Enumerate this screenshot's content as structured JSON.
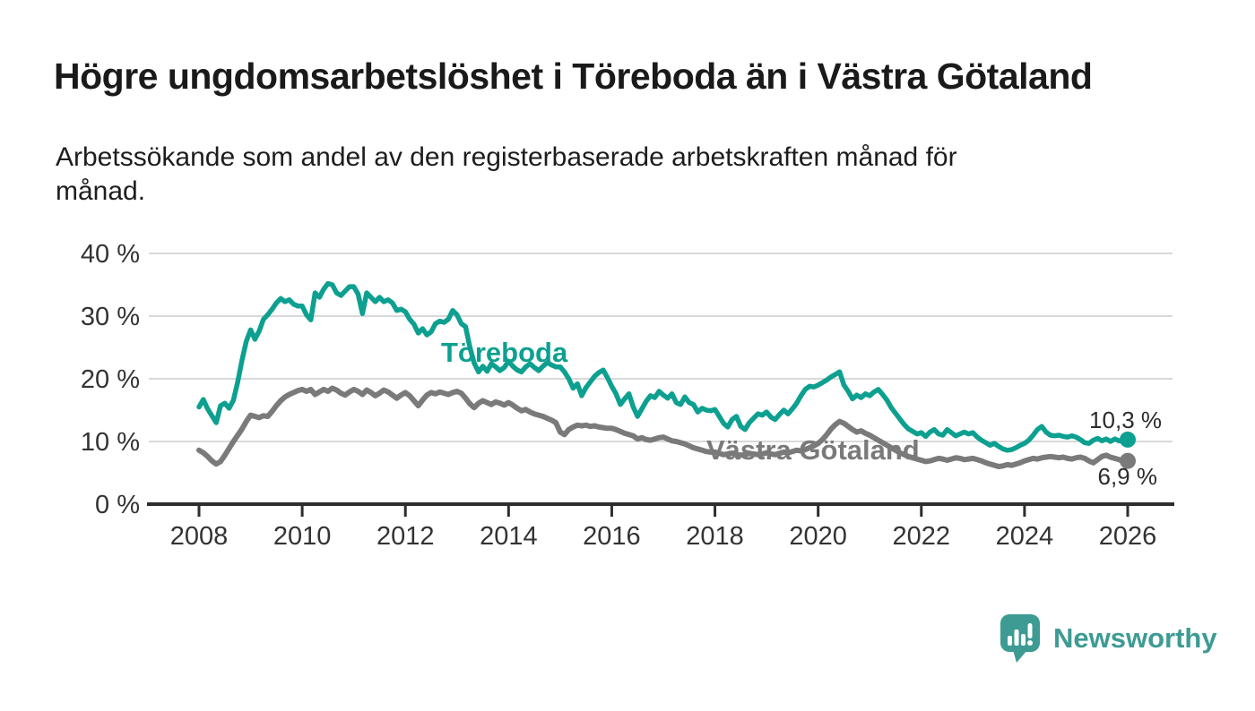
{
  "page": {
    "title": "Högre ungdomsarbetslöshet i Töreboda än i Västra Götaland",
    "subtitle": "Arbetssökande som andel av den registerbaserade arbetskraften månad för månad."
  },
  "branding": {
    "name": "Newsworthy",
    "color": "#3d9b93",
    "icon": "bar-chart-speech-bubble"
  },
  "chart_data": {
    "type": "line",
    "title": "Högre ungdomsarbetslöshet i Töreboda än i Västra Götaland",
    "subtitle": "Arbetssökande som andel av den registerbaserade arbetskraften månad för månad.",
    "x_start_year": 2008,
    "x_end_year": 2026,
    "points_per_year": 12,
    "ylim": [
      0,
      40
    ],
    "grid": "horizontal",
    "colors": {
      "grid": "#d9d9d9",
      "axis": "#2e2e2e",
      "axis_text": "#333333"
    },
    "y_axis": {
      "unit": "%",
      "ticks": [
        {
          "label": "0 %",
          "value": 0
        },
        {
          "label": "10 %",
          "value": 10
        },
        {
          "label": "20 %",
          "value": 20
        },
        {
          "label": "30 %",
          "value": 30
        },
        {
          "label": "40 %",
          "value": 40
        }
      ]
    },
    "x_axis": {
      "tick_years": [
        2008,
        2010,
        2012,
        2014,
        2016,
        2018,
        2020,
        2022,
        2024,
        2026
      ]
    },
    "series": [
      {
        "name": "Töreboda",
        "color": "#0da090",
        "end_label": "10,3 %",
        "end_value": 10.3,
        "values": [
          15.5,
          16.7,
          15.2,
          14.1,
          13.0,
          15.7,
          16.1,
          15.3,
          16.6,
          19.5,
          23.0,
          26.0,
          27.8,
          26.3,
          27.6,
          29.5,
          30.2,
          31.1,
          32.1,
          32.8,
          32.3,
          32.6,
          31.9,
          31.6,
          31.6,
          30.2,
          29.4,
          33.7,
          33.0,
          34.3,
          35.2,
          35.0,
          33.7,
          33.3,
          34.0,
          34.7,
          34.7,
          33.5,
          30.4,
          33.7,
          33.0,
          32.3,
          33.0,
          32.3,
          32.6,
          32.1,
          30.9,
          31.1,
          30.7,
          29.5,
          28.7,
          27.3,
          28.0,
          27.0,
          27.5,
          28.8,
          29.2,
          29.0,
          29.5,
          30.9,
          30.2,
          28.8,
          28.3,
          25.0,
          22.5,
          21.1,
          22.0,
          21.2,
          22.4,
          21.9,
          21.3,
          21.8,
          22.8,
          22.0,
          21.4,
          21.1,
          21.9,
          22.4,
          21.8,
          21.3,
          22.0,
          22.6,
          22.2,
          21.9,
          21.9,
          21.1,
          20.0,
          18.5,
          19.2,
          17.3,
          18.6,
          19.5,
          20.4,
          21.0,
          21.4,
          20.2,
          18.8,
          17.6,
          15.9,
          16.8,
          17.6,
          15.5,
          14.0,
          15.2,
          16.4,
          17.3,
          17.0,
          18.0,
          17.4,
          16.9,
          17.6,
          16.2,
          15.9,
          17.1,
          16.2,
          15.9,
          14.7,
          15.3,
          15.0,
          14.9,
          15.1,
          14.0,
          12.9,
          12.3,
          13.5,
          14.0,
          12.4,
          11.9,
          13.0,
          13.7,
          14.4,
          14.2,
          14.7,
          13.9,
          13.5,
          14.3,
          15.0,
          14.4,
          15.2,
          16.1,
          17.3,
          18.3,
          18.8,
          18.7,
          19.0,
          19.4,
          19.8,
          20.3,
          20.7,
          21.1,
          19.0,
          18.0,
          16.8,
          17.4,
          17.0,
          17.6,
          17.3,
          17.9,
          18.3,
          17.5,
          16.6,
          15.4,
          14.5,
          13.6,
          12.7,
          12.0,
          11.6,
          11.2,
          11.4,
          10.8,
          11.5,
          11.9,
          11.2,
          11.0,
          11.9,
          11.4,
          10.9,
          11.2,
          11.5,
          11.2,
          11.4,
          10.7,
          10.2,
          9.8,
          9.4,
          9.7,
          9.2,
          8.8,
          8.6,
          8.7,
          9.0,
          9.4,
          9.7,
          10.2,
          11.0,
          11.9,
          12.4,
          11.5,
          11.0,
          10.9,
          11.0,
          10.8,
          10.7,
          10.9,
          10.7,
          10.3,
          9.8,
          9.7,
          10.2,
          10.5,
          10.1,
          10.4,
          10.0,
          10.4,
          10.1,
          10.0,
          10.3
        ]
      },
      {
        "name": "Västra Götaland",
        "color": "#7a7a7a",
        "end_label": "6,9 %",
        "end_value": 6.9,
        "values": [
          8.6,
          8.2,
          7.6,
          6.9,
          6.4,
          6.8,
          7.8,
          8.9,
          10.0,
          11.0,
          12.0,
          13.2,
          14.2,
          14.0,
          13.8,
          14.1,
          14.0,
          14.8,
          15.7,
          16.5,
          17.1,
          17.5,
          17.8,
          18.1,
          18.3,
          18.0,
          18.3,
          17.5,
          17.9,
          18.3,
          18.0,
          18.5,
          18.2,
          17.7,
          17.4,
          17.9,
          18.3,
          18.0,
          17.5,
          18.2,
          17.8,
          17.3,
          17.7,
          18.2,
          17.9,
          17.4,
          16.9,
          17.4,
          17.8,
          17.3,
          16.5,
          15.7,
          16.6,
          17.4,
          17.8,
          17.6,
          17.9,
          17.7,
          17.5,
          17.8,
          18.0,
          17.7,
          16.9,
          16.0,
          15.4,
          16.1,
          16.5,
          16.2,
          15.9,
          16.3,
          16.1,
          15.8,
          16.2,
          15.8,
          15.3,
          14.9,
          15.1,
          14.7,
          14.4,
          14.2,
          14.0,
          13.7,
          13.4,
          13.0,
          11.5,
          11.1,
          11.9,
          12.3,
          12.6,
          12.5,
          12.6,
          12.4,
          12.5,
          12.3,
          12.2,
          12.1,
          12.1,
          11.9,
          11.6,
          11.3,
          11.1,
          10.9,
          10.4,
          10.6,
          10.3,
          10.2,
          10.4,
          10.6,
          10.7,
          10.4,
          10.1,
          10.0,
          9.8,
          9.6,
          9.3,
          9.0,
          8.8,
          8.6,
          8.4,
          8.3,
          8.3,
          8.1,
          7.9,
          8.0,
          8.1,
          7.9,
          7.8,
          7.9,
          8.1,
          8.0,
          7.9,
          8.0,
          8.2,
          8.0,
          7.9,
          8.1,
          8.3,
          8.2,
          8.4,
          8.6,
          8.5,
          8.7,
          9.0,
          9.3,
          9.7,
          10.3,
          11.1,
          12.0,
          12.7,
          13.2,
          12.9,
          12.4,
          11.9,
          11.5,
          11.7,
          11.3,
          11.0,
          10.6,
          10.2,
          9.8,
          9.4,
          9.0,
          8.6,
          8.2,
          7.9,
          7.6,
          7.4,
          7.2,
          7.0,
          6.8,
          6.9,
          7.1,
          7.3,
          7.2,
          7.0,
          7.2,
          7.4,
          7.3,
          7.1,
          7.2,
          7.3,
          7.1,
          6.9,
          6.6,
          6.4,
          6.2,
          6.0,
          6.1,
          6.3,
          6.2,
          6.4,
          6.6,
          6.9,
          7.1,
          7.3,
          7.2,
          7.4,
          7.5,
          7.6,
          7.5,
          7.4,
          7.5,
          7.3,
          7.2,
          7.4,
          7.5,
          7.3,
          6.9,
          6.6,
          7.1,
          7.6,
          7.8,
          7.5,
          7.3,
          7.1,
          6.8,
          6.9
        ]
      }
    ]
  }
}
